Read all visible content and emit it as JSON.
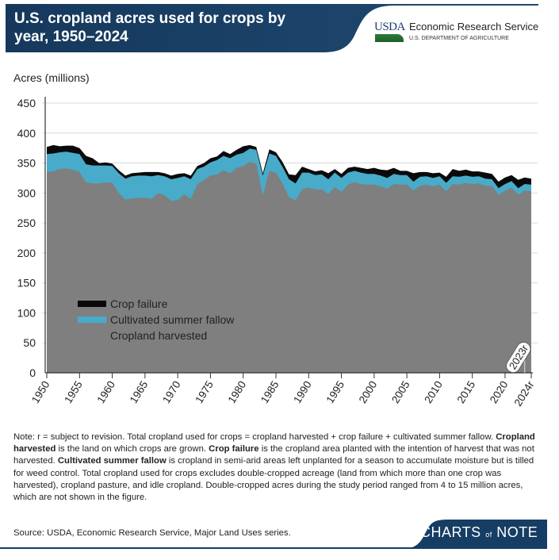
{
  "header": {
    "title": "U.S. cropland acres used for crops by year, 1950–2024",
    "logo_usda": "USDA",
    "logo_org": "Economic Research Service",
    "logo_dept": "U.S. DEPARTMENT OF AGRICULTURE"
  },
  "colors": {
    "header_bg": "#1b3d61",
    "harvested": "#7f7f7f",
    "fallow": "#48abc9",
    "failure": "#0a0a0a"
  },
  "chart_data": {
    "type": "area",
    "stacked": true,
    "ylabel": "Acres (millions)",
    "xlabel": "",
    "ylim": [
      0,
      450
    ],
    "yticks": [
      0,
      50,
      100,
      150,
      200,
      250,
      300,
      350,
      400,
      450
    ],
    "xticks": [
      "1950",
      "1955",
      "1960",
      "1965",
      "1970",
      "1975",
      "1980",
      "1985",
      "1990",
      "1995",
      "2000",
      "2005",
      "2010",
      "2015",
      "2020",
      "2024r"
    ],
    "grid": "horizontal",
    "legend": {
      "placement": "lower-left",
      "entries": [
        "Crop failure",
        "Cultivated summer fallow",
        "Cropland harvested"
      ]
    },
    "annotation": "2023r",
    "x_start": 1950,
    "x_end": 2024,
    "series": [
      {
        "name": "Cropland harvested",
        "values": [
          335,
          336,
          340,
          341,
          339,
          335,
          318,
          316,
          316,
          318,
          317,
          300,
          289,
          291,
          292,
          292,
          290,
          300,
          296,
          287,
          288,
          298,
          290,
          315,
          322,
          329,
          331,
          338,
          333,
          342,
          345,
          352,
          349,
          296,
          337,
          334,
          316,
          293,
          288,
          306,
          309,
          306,
          306,
          298,
          310,
          302,
          314,
          318,
          315,
          314,
          314,
          311,
          307,
          315,
          314,
          314,
          304,
          312,
          314,
          311,
          314,
          303,
          315,
          314,
          317,
          315,
          316,
          312,
          312,
          297,
          304,
          309,
          297,
          304,
          303
        ]
      },
      {
        "name": "Cultivated summer fallow",
        "values": [
          30,
          30,
          28,
          28,
          28,
          30,
          30,
          30,
          30,
          28,
          28,
          33,
          35,
          37,
          37,
          37,
          38,
          30,
          32,
          36,
          37,
          30,
          33,
          25,
          22,
          22,
          24,
          24,
          25,
          22,
          22,
          22,
          23,
          33,
          29,
          28,
          28,
          30,
          28,
          28,
          25,
          24,
          25,
          25,
          24,
          23,
          20,
          19,
          19,
          18,
          18,
          18,
          18,
          17,
          16,
          16,
          15,
          15,
          14,
          14,
          14,
          14,
          13,
          13,
          12,
          12,
          12,
          12,
          11,
          11,
          11,
          11,
          11,
          11,
          11
        ]
      },
      {
        "name": "Crop failure",
        "values": [
          12,
          14,
          10,
          10,
          12,
          10,
          14,
          12,
          4,
          5,
          4,
          5,
          5,
          5,
          5,
          6,
          7,
          5,
          5,
          6,
          7,
          5,
          6,
          5,
          6,
          7,
          6,
          8,
          7,
          8,
          11,
          6,
          5,
          4,
          7,
          6,
          8,
          8,
          14,
          10,
          6,
          6,
          7,
          10,
          6,
          7,
          8,
          7,
          8,
          8,
          10,
          10,
          13,
          10,
          7,
          7,
          14,
          8,
          7,
          8,
          6,
          10,
          12,
          10,
          10,
          9,
          8,
          10,
          9,
          11,
          11,
          10,
          14,
          11,
          10
        ]
      }
    ]
  },
  "note": {
    "p1": "Note: r = subject to revision. Total cropland used for crops = cropland harvested + crop failure + cultivated summer fallow. ",
    "b1": "Cropland harvested",
    "p2": " is the land on which crops are grown. ",
    "b2": "Crop failure",
    "p3": " is the cropland area planted with the intention of harvest that was not harvested. ",
    "b3": "Cultivated summer fallow",
    "p4": " is cropland in semi-arid areas left unplanted for a season to accumulate moisture but is tilled for weed control. Total cropland used for crops excludes double-cropped acreage (land from which more than one crop was harvested), cropland pasture, and idle cropland. Double-cropped acres during the study period ranged from 4 to 15 million acres, which are not shown in the figure."
  },
  "source": "Source: USDA, Economic Research Service, Major Land Uses series.",
  "footer": {
    "brand_a": "CHARTS",
    "brand_of": "of",
    "brand_b": "NOTE"
  }
}
